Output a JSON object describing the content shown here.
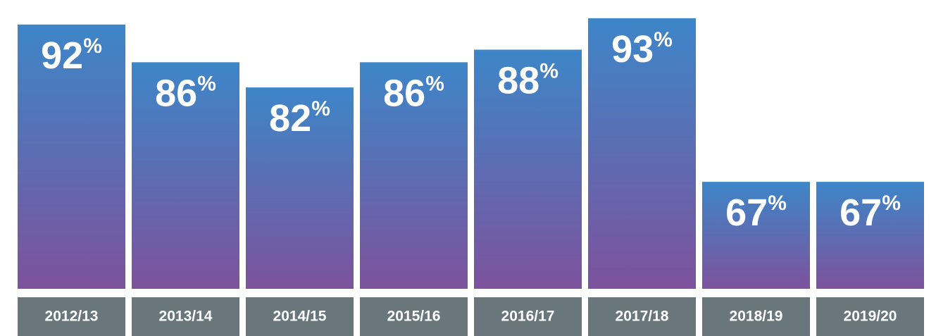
{
  "chart_data": {
    "type": "bar",
    "categories": [
      "2012/13",
      "2013/14",
      "2014/15",
      "2015/16",
      "2016/17",
      "2017/18",
      "2018/19",
      "2019/20"
    ],
    "values": [
      92,
      86,
      82,
      86,
      88,
      93,
      67,
      67
    ],
    "value_labels": [
      "92%",
      "86%",
      "82%",
      "86%",
      "88%",
      "93%",
      "67%",
      "67%"
    ],
    "ylim": [
      50,
      95
    ],
    "color": [
      "#3d86c8",
      "#7d529c"
    ]
  }
}
